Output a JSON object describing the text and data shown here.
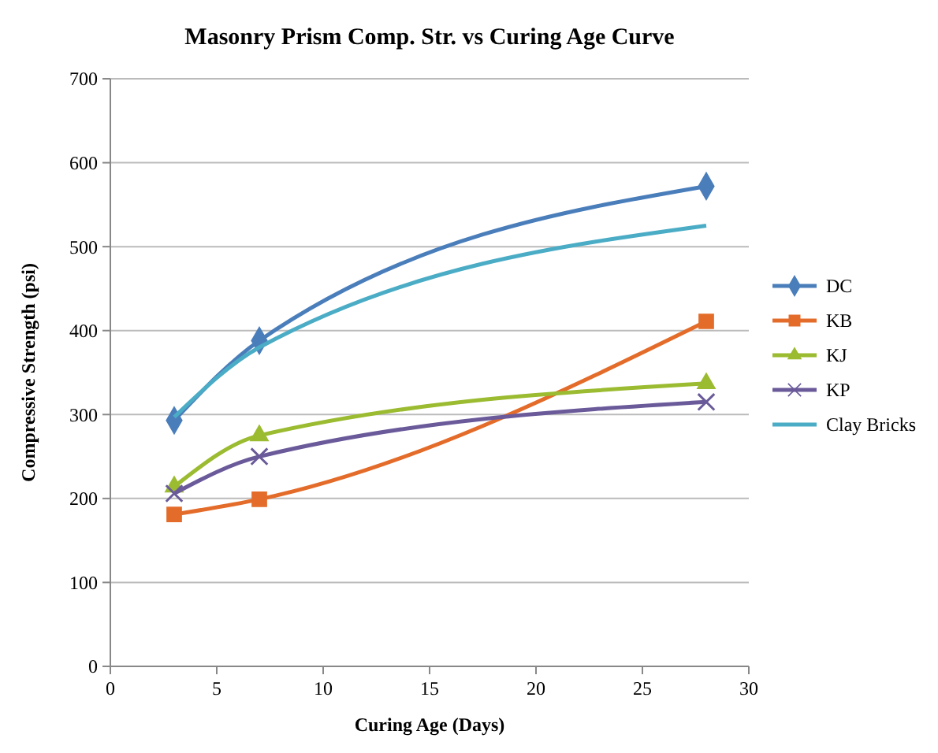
{
  "chart_data": {
    "type": "line",
    "title": "Masonry Prism Comp. Str. vs Curing Age Curve",
    "xlabel": "Curing Age (Days)",
    "ylabel": "Compressive Strength (psi)",
    "xlim": [
      0,
      30
    ],
    "xticks": [
      0,
      5,
      10,
      15,
      20,
      25,
      30
    ],
    "ylim": [
      0,
      700
    ],
    "yticks": [
      0,
      100,
      200,
      300,
      400,
      500,
      600,
      700
    ],
    "grid": "y",
    "legend": "right",
    "series": [
      {
        "name": "DC",
        "color": "#4a7ebb",
        "marker": "diamond",
        "x": [
          3,
          7,
          28
        ],
        "values": [
          293,
          388,
          572
        ]
      },
      {
        "name": "KB",
        "color": "#e46c2a",
        "marker": "square",
        "x": [
          3,
          7,
          28
        ],
        "values": [
          181,
          199,
          411
        ]
      },
      {
        "name": "KJ",
        "color": "#9bbb30",
        "marker": "triangle",
        "x": [
          3,
          7,
          28
        ],
        "values": [
          214,
          275,
          337
        ]
      },
      {
        "name": "KP",
        "color": "#6a5a9a",
        "marker": "cross",
        "x": [
          3,
          7,
          28
        ],
        "values": [
          206,
          250,
          315
        ]
      },
      {
        "name": "Clay Bricks",
        "color": "#4bacc6",
        "marker": "none",
        "x": [
          3,
          7,
          28
        ],
        "values": [
          297,
          380,
          525
        ]
      }
    ]
  }
}
